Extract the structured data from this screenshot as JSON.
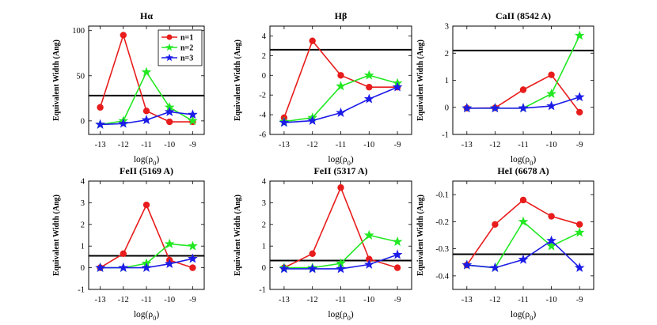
{
  "colors": {
    "n1": "#e81c1c",
    "n2": "#22e822",
    "n3": "#1c1ce8",
    "ref": "#000000"
  },
  "chart_data": [
    {
      "type": "line",
      "title": "Hα",
      "ylabel": "Equivalent Width (Ang)",
      "xlabel": "log(ρ0)",
      "x": [
        -13,
        -12,
        -11,
        -10,
        -9
      ],
      "xticks": [
        "-13",
        "-12",
        "-11",
        "-10",
        "-9"
      ],
      "ylim": [
        -15,
        105
      ],
      "yticks": [
        0,
        50,
        100
      ],
      "ytick_labels": [
        "0",
        "50",
        "100"
      ],
      "hline": 28,
      "legend": {
        "entries": [
          "n=1",
          "n=2",
          "n=3"
        ],
        "position": "top-right"
      },
      "series": [
        {
          "name": "n=1",
          "marker": "circle",
          "values": [
            15,
            95,
            11,
            -1,
            -1
          ]
        },
        {
          "name": "n=2",
          "marker": "star",
          "values": [
            -4,
            0,
            54,
            15,
            0
          ]
        },
        {
          "name": "n=3",
          "marker": "star",
          "values": [
            -4,
            -3,
            1,
            10,
            7
          ]
        }
      ]
    },
    {
      "type": "line",
      "title": "Hβ",
      "ylabel": "Equivalent Width (Ang)",
      "xlabel": "log(ρ0)",
      "x": [
        -13,
        -12,
        -11,
        -10,
        -9
      ],
      "xticks": [
        "-13",
        "-12",
        "-11",
        "-10",
        "-9"
      ],
      "ylim": [
        -6,
        5
      ],
      "yticks": [
        -6,
        -4,
        -2,
        0,
        2,
        4
      ],
      "ytick_labels": [
        "-6",
        "-4",
        "-2",
        "0",
        "2",
        "4"
      ],
      "hline": 2.6,
      "series": [
        {
          "name": "n=1",
          "marker": "circle",
          "values": [
            -4.3,
            3.5,
            0,
            -1.2,
            -1.2
          ]
        },
        {
          "name": "n=2",
          "marker": "star",
          "values": [
            -4.7,
            -4.3,
            -1.1,
            0,
            -0.8
          ]
        },
        {
          "name": "n=3",
          "marker": "star",
          "values": [
            -4.8,
            -4.6,
            -3.8,
            -2.4,
            -1.2
          ]
        }
      ]
    },
    {
      "type": "line",
      "title": "CaII (8542 A)",
      "ylabel": "Equivalent Width (Ang)",
      "xlabel": "log(ρ0)",
      "x": [
        -13,
        -12,
        -11,
        -10,
        -9
      ],
      "xticks": [
        "-13",
        "-12",
        "-11",
        "-10",
        "-9"
      ],
      "ylim": [
        -1,
        3
      ],
      "yticks": [
        -1,
        0,
        1,
        2,
        3
      ],
      "ytick_labels": [
        "-1",
        "0",
        "1",
        "2",
        "3"
      ],
      "hline": 2.1,
      "series": [
        {
          "name": "n=1",
          "marker": "circle",
          "values": [
            -0.03,
            -0.02,
            0.65,
            1.2,
            -0.18
          ]
        },
        {
          "name": "n=2",
          "marker": "star",
          "values": [
            -0.03,
            -0.03,
            -0.03,
            0.5,
            2.65
          ]
        },
        {
          "name": "n=3",
          "marker": "star",
          "values": [
            -0.03,
            -0.03,
            -0.03,
            0.05,
            0.38
          ]
        }
      ]
    },
    {
      "type": "line",
      "title": "FeII (5169 A)",
      "ylabel": "Equivalent Width (Ang)",
      "xlabel": "log(ρ0)",
      "x": [
        -13,
        -12,
        -11,
        -10,
        -9
      ],
      "xticks": [
        "-13",
        "-12",
        "-11",
        "-10",
        "-9"
      ],
      "ylim": [
        -1,
        4
      ],
      "yticks": [
        -1,
        0,
        1,
        2,
        3,
        4
      ],
      "ytick_labels": [
        "-1",
        "0",
        "1",
        "2",
        "3",
        "4"
      ],
      "hline": 0.55,
      "series": [
        {
          "name": "n=1",
          "marker": "circle",
          "values": [
            0,
            0.65,
            2.9,
            0.35,
            0
          ]
        },
        {
          "name": "n=2",
          "marker": "star",
          "values": [
            0,
            0,
            0.2,
            1.1,
            1.0
          ]
        },
        {
          "name": "n=3",
          "marker": "star",
          "values": [
            0,
            0,
            0,
            0.18,
            0.42
          ]
        }
      ]
    },
    {
      "type": "line",
      "title": "FeII (5317 A)",
      "ylabel": "Equivalent Width (Ang)",
      "xlabel": "log(ρ0)",
      "x": [
        -13,
        -12,
        -11,
        -10,
        -9
      ],
      "xticks": [
        "-13",
        "-12",
        "-11",
        "-10",
        "-9"
      ],
      "ylim": [
        -1,
        4
      ],
      "yticks": [
        -1,
        0,
        1,
        2,
        3,
        4
      ],
      "ytick_labels": [
        "-1",
        "0",
        "1",
        "2",
        "3",
        "4"
      ],
      "hline": 0.33,
      "series": [
        {
          "name": "n=1",
          "marker": "circle",
          "values": [
            0,
            0.65,
            3.7,
            0.4,
            0
          ]
        },
        {
          "name": "n=2",
          "marker": "star",
          "values": [
            0,
            0,
            0.2,
            1.5,
            1.2
          ]
        },
        {
          "name": "n=3",
          "marker": "star",
          "values": [
            -0.05,
            -0.05,
            -0.05,
            0.15,
            0.6
          ]
        }
      ]
    },
    {
      "type": "line",
      "title": "HeI (6678 A)",
      "ylabel": "Equivalent Width (Ang)",
      "xlabel": "log(ρ0)",
      "x": [
        -13,
        -12,
        -11,
        -10,
        -9
      ],
      "xticks": [
        "-13",
        "-12",
        "-11",
        "-10",
        "-9"
      ],
      "ylim": [
        -0.45,
        -0.05
      ],
      "yticks": [
        -0.4,
        -0.3,
        -0.2,
        -0.1
      ],
      "ytick_labels": [
        "-0.4",
        "-0.3",
        "-0.2",
        "-0.1"
      ],
      "hline": -0.32,
      "series": [
        {
          "name": "n=1",
          "marker": "circle",
          "values": [
            -0.36,
            -0.21,
            -0.12,
            -0.18,
            -0.21
          ]
        },
        {
          "name": "n=2",
          "marker": "star",
          "values": [
            -0.36,
            -0.37,
            -0.2,
            -0.29,
            -0.24
          ]
        },
        {
          "name": "n=3",
          "marker": "star",
          "values": [
            -0.36,
            -0.37,
            -0.34,
            -0.27,
            -0.37
          ]
        }
      ]
    }
  ]
}
